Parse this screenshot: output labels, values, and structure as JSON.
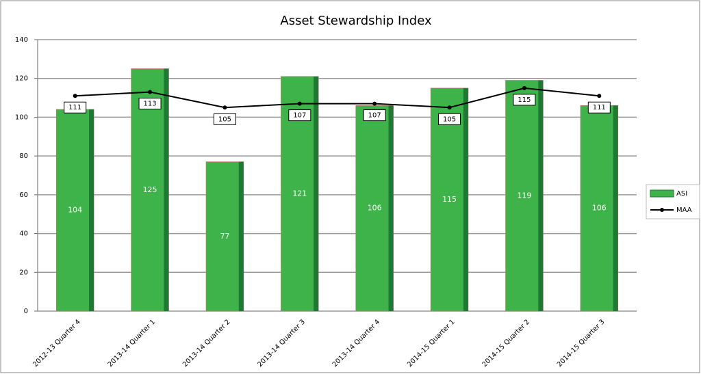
{
  "chart_data": {
    "type": "bar",
    "title": "Asset Stewardship Index",
    "categories": [
      "2012-13 Quarter 4",
      "2013-14 Quarter 1",
      "2013-14 Quarter 2",
      "2013-14 Quarter 3",
      "2013-14 Quarter 4",
      "2014-15 Quarter 1",
      "2014-15 Quarter 2",
      "2014-15 Quarter 3"
    ],
    "series": [
      {
        "name": "ASI",
        "type": "bar",
        "color": "#3db34a",
        "values": [
          104,
          125,
          77,
          121,
          106,
          115,
          119,
          106
        ]
      },
      {
        "name": "MAA",
        "type": "line",
        "color": "#000000",
        "values": [
          111,
          113,
          105,
          107,
          107,
          105,
          115,
          111
        ]
      }
    ],
    "ylim": [
      0,
      140
    ],
    "yticks": [
      0,
      20,
      40,
      60,
      80,
      100,
      120,
      140
    ],
    "grid": true,
    "legend": "right"
  }
}
